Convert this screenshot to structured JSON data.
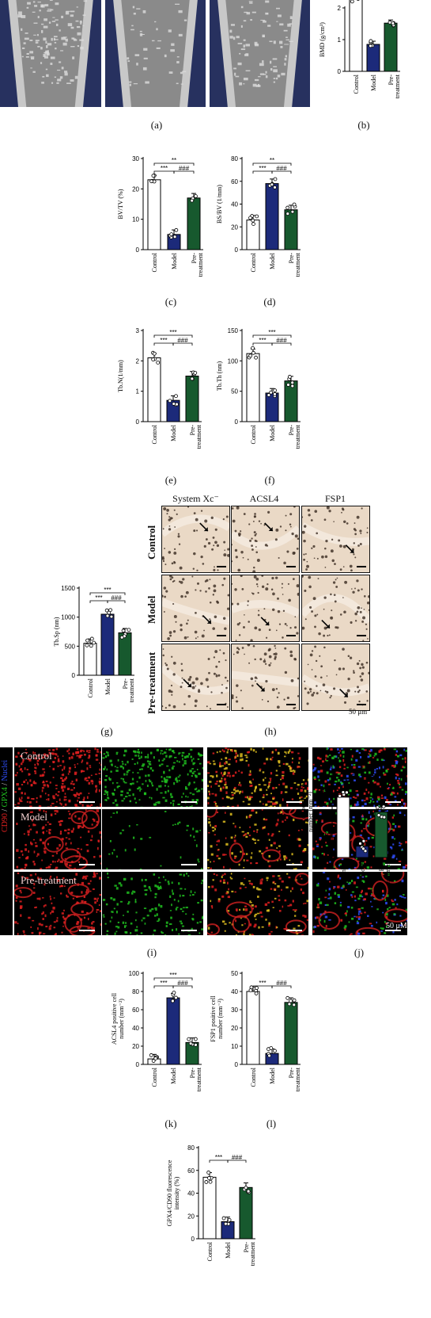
{
  "panel_labels": [
    "(a)",
    "(b)",
    "(c)",
    "(d)",
    "(e)",
    "(f)",
    "(g)",
    "(h)",
    "(i)",
    "(j)",
    "(k)",
    "(l)"
  ],
  "colors": {
    "control": "#ffffff",
    "model": "#1c2a7a",
    "pretreatment": "#17592e",
    "ct_background": "#27315f"
  },
  "categories": [
    "Control",
    "Model",
    "Pre-\ntreatment"
  ],
  "histology": {
    "columns": [
      "System Xc⁻",
      "ACSL4",
      "FSP1"
    ],
    "rows": [
      "Control",
      "Model",
      "Pre-treatment"
    ],
    "scale_text": "50 μm"
  },
  "fluorescence": {
    "side_label_red": "CD90",
    "side_label_sep1": " / ",
    "side_label_green": "GPX4",
    "side_label_sep2": " / ",
    "side_label_blue": "Nuclei",
    "rows": [
      "Control",
      "Model",
      "Pre-treatment"
    ],
    "scale_text": "50 μM"
  },
  "chart_data": [
    {
      "id": "b",
      "type": "bar",
      "ylabel": "BMD (g/cm³)",
      "ylim": [
        0,
        2
      ],
      "yticks": [
        0,
        1,
        2
      ],
      "categories": [
        "Control",
        "Model",
        "Pre-treatment"
      ],
      "values": [
        2.3,
        0.85,
        1.52
      ],
      "sig": []
    },
    {
      "id": "c",
      "type": "bar",
      "ylabel": "BV/TV (%)",
      "ylim": [
        0,
        30
      ],
      "yticks": [
        0,
        10,
        20,
        30
      ],
      "categories": [
        "Control",
        "Model",
        "Pre-treatment"
      ],
      "values": [
        23,
        5,
        17
      ],
      "sig": [
        {
          "from": 0,
          "to": 2,
          "text": "**",
          "level": 2
        },
        {
          "from": 0,
          "to": 1,
          "text": "***",
          "level": 1
        },
        {
          "from": 1,
          "to": 2,
          "text": "###",
          "level": 1
        }
      ]
    },
    {
      "id": "d",
      "type": "bar",
      "ylabel": "BS/BV (1/mm)",
      "ylim": [
        0,
        80
      ],
      "yticks": [
        0,
        20,
        40,
        60,
        80
      ],
      "categories": [
        "Control",
        "Model",
        "Pre-treatment"
      ],
      "values": [
        26,
        58,
        35
      ],
      "sig": [
        {
          "from": 0,
          "to": 2,
          "text": "**",
          "level": 2
        },
        {
          "from": 0,
          "to": 1,
          "text": "***",
          "level": 1
        },
        {
          "from": 1,
          "to": 2,
          "text": "###",
          "level": 1
        }
      ]
    },
    {
      "id": "e",
      "type": "bar",
      "ylabel": "Tb.N(1/mm)",
      "ylim": [
        0,
        3
      ],
      "yticks": [
        0,
        1,
        2,
        3
      ],
      "categories": [
        "Control",
        "Model",
        "Pre-treatment"
      ],
      "values": [
        2.1,
        0.7,
        1.5
      ],
      "sig": [
        {
          "from": 0,
          "to": 2,
          "text": "***",
          "level": 2
        },
        {
          "from": 0,
          "to": 1,
          "text": "***",
          "level": 1
        },
        {
          "from": 1,
          "to": 2,
          "text": "###",
          "level": 1
        }
      ]
    },
    {
      "id": "f",
      "type": "bar",
      "ylabel": "Tb.Th (nm)",
      "ylim": [
        0,
        150
      ],
      "yticks": [
        0,
        50,
        100,
        150
      ],
      "categories": [
        "Control",
        "Model",
        "Pre-treatment"
      ],
      "values": [
        112,
        47,
        67
      ],
      "sig": [
        {
          "from": 0,
          "to": 2,
          "text": "***",
          "level": 2
        },
        {
          "from": 0,
          "to": 1,
          "text": "***",
          "level": 1
        },
        {
          "from": 1,
          "to": 2,
          "text": "###",
          "level": 1
        }
      ]
    },
    {
      "id": "g",
      "type": "bar",
      "ylabel": "Tb.Sp (nm)",
      "ylim": [
        0,
        1500
      ],
      "yticks": [
        0,
        500,
        1000,
        1500
      ],
      "categories": [
        "Control",
        "Model",
        "Pre-treatment"
      ],
      "values": [
        550,
        1050,
        730
      ],
      "sig": [
        {
          "from": 0,
          "to": 2,
          "text": "***",
          "level": 2
        },
        {
          "from": 0,
          "to": 1,
          "text": "***",
          "level": 1
        },
        {
          "from": 1,
          "to": 2,
          "text": "###",
          "level": 1
        }
      ]
    },
    {
      "id": "j",
      "type": "bar",
      "ylabel": "System Xc⁻ positive cell\nnumber (mm⁻²)",
      "ylim": [
        0,
        80
      ],
      "yticks": [
        0,
        20,
        40,
        60,
        80
      ],
      "categories": [
        "Control",
        "Model",
        "Pre-treatment"
      ],
      "values": [
        53,
        10,
        40
      ],
      "sig": [
        {
          "from": 0,
          "to": 2,
          "text": "*",
          "level": 2
        },
        {
          "from": 0,
          "to": 1,
          "text": "***",
          "level": 1
        },
        {
          "from": 1,
          "to": 2,
          "text": "###",
          "level": 1
        }
      ]
    },
    {
      "id": "k",
      "type": "bar",
      "ylabel": "ACSL4 positive cell\nnumber (mm⁻²)",
      "ylim": [
        0,
        100
      ],
      "yticks": [
        0,
        20,
        40,
        60,
        80,
        100
      ],
      "categories": [
        "Control",
        "Model",
        "Pre-treatment"
      ],
      "values": [
        6,
        73,
        24
      ],
      "sig": [
        {
          "from": 0,
          "to": 2,
          "text": "***",
          "level": 2
        },
        {
          "from": 0,
          "to": 1,
          "text": "***",
          "level": 1
        },
        {
          "from": 1,
          "to": 2,
          "text": "###",
          "level": 1
        }
      ]
    },
    {
      "id": "l",
      "type": "bar",
      "ylabel": "FSP1 positive cell\nnumber (mm⁻²)",
      "ylim": [
        0,
        50
      ],
      "yticks": [
        0,
        10,
        20,
        30,
        40,
        50
      ],
      "categories": [
        "Control",
        "Model",
        "Pre-treatment"
      ],
      "values": [
        40,
        6,
        34
      ],
      "sig": [
        {
          "from": 0,
          "to": 1,
          "text": "***",
          "level": 1
        },
        {
          "from": 1,
          "to": 2,
          "text": "###",
          "level": 1
        }
      ]
    },
    {
      "id": "m",
      "type": "bar",
      "ylabel": "GPX4/CD90 fluorescence\nintensity (%)",
      "ylim": [
        0,
        80
      ],
      "yticks": [
        0,
        20,
        40,
        60,
        80
      ],
      "categories": [
        "Control",
        "Model",
        "Pre-treatment"
      ],
      "values": [
        54,
        15,
        45
      ],
      "sig": [
        {
          "from": 0,
          "to": 1,
          "text": "***",
          "level": 1
        },
        {
          "from": 1,
          "to": 2,
          "text": "###",
          "level": 1
        }
      ]
    }
  ]
}
